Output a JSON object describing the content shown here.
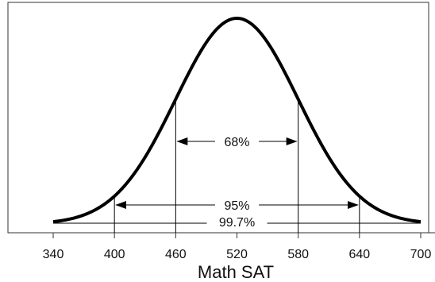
{
  "chart_data": {
    "type": "line",
    "xlabel": "Math SAT",
    "xlim": [
      340,
      700
    ],
    "mean": 520,
    "sd": 60,
    "x_ticks": [
      340,
      400,
      460,
      520,
      580,
      640,
      700
    ],
    "x_tick_labels": [
      "340",
      "400",
      "460",
      "520",
      "580",
      "640",
      "700"
    ],
    "series": [
      {
        "x": [
          340,
          360,
          380,
          400,
          420,
          440,
          460,
          480,
          500,
          520,
          540,
          560,
          580,
          600,
          620,
          640,
          660,
          680,
          700
        ],
        "y": [
          0.0111,
          0.0333,
          0.0889,
          0.1353,
          0.2494,
          0.4111,
          0.6065,
          0.8007,
          0.946,
          1.0,
          0.946,
          0.8007,
          0.6065,
          0.4111,
          0.2494,
          0.1353,
          0.0889,
          0.0333,
          0.0111
        ]
      }
    ],
    "intervals": [
      {
        "label": "68%",
        "from": 460,
        "to": 580
      },
      {
        "label": "95%",
        "from": 400,
        "to": 640
      },
      {
        "label": "99.7%",
        "from": 340,
        "to": 700
      }
    ],
    "grid": false,
    "line_color": "#000000"
  }
}
